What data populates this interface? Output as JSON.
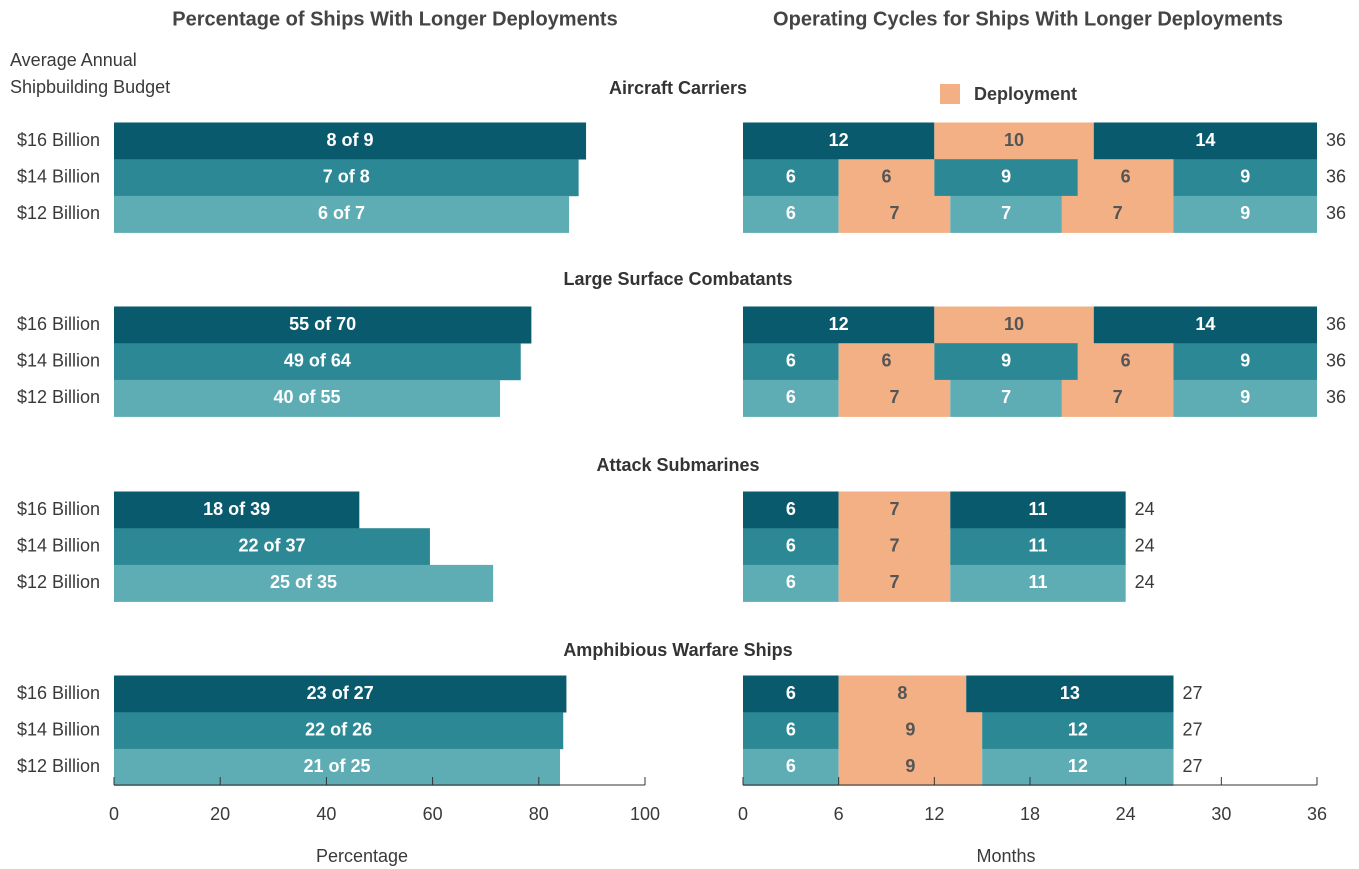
{
  "chart_data": [
    {
      "type": "bar",
      "title": "Percentage of Ships With Longer Deployments",
      "ylabel": [
        "Average Annual",
        "Shipbuilding Budget"
      ],
      "xlabel": "Percentage",
      "xlim": [
        0,
        100
      ],
      "xticks": [
        0,
        20,
        40,
        60,
        80,
        100
      ],
      "colors": [
        "#0a5a6e",
        "#2d8895",
        "#5eacb4"
      ],
      "groups": [
        {
          "name": "Aircraft Carriers",
          "categories": [
            "$16 Billion",
            "$14 Billion",
            "$12 Billion"
          ],
          "values": [
            88.9,
            87.5,
            85.7
          ],
          "value_labels": [
            "8 of 9",
            "7 of 8",
            "6 of 7"
          ]
        },
        {
          "name": "Large Surface Combatants",
          "categories": [
            "$16 Billion",
            "$14 Billion",
            "$12 Billion"
          ],
          "values": [
            78.6,
            76.6,
            72.7
          ],
          "value_labels": [
            "55 of 70",
            "49 of 64",
            "40 of 55"
          ]
        },
        {
          "name": "Attack Submarines",
          "categories": [
            "$16 Billion",
            "$14 Billion",
            "$12 Billion"
          ],
          "values": [
            46.2,
            59.5,
            71.4
          ],
          "value_labels": [
            "18 of 39",
            "22 of 37",
            "25 of 35"
          ]
        },
        {
          "name": "Amphibious Warfare Ships",
          "categories": [
            "$16 Billion",
            "$14 Billion",
            "$12 Billion"
          ],
          "values": [
            85.2,
            84.6,
            84.0
          ],
          "value_labels": [
            "23 of 27",
            "22 of 26",
            "21 of 25"
          ]
        }
      ]
    },
    {
      "type": "stacked_bar",
      "title": "Operating Cycles for Ships With Longer Deployments",
      "xlabel": "Months",
      "legend": "Deployment",
      "deployment_color": "#f3b084",
      "xlim": [
        0,
        36
      ],
      "xticks": [
        0,
        6,
        12,
        18,
        24,
        30,
        36
      ],
      "colors": [
        "#0a5a6e",
        "#2d8895",
        "#5eacb4"
      ],
      "groups": [
        {
          "rows": [
            {
              "segments": [
                12,
                10,
                14
              ],
              "total": 36
            },
            {
              "segments": [
                6,
                6,
                9,
                6,
                9
              ],
              "total": 36
            },
            {
              "segments": [
                6,
                7,
                7,
                7,
                9
              ],
              "total": 36
            }
          ]
        },
        {
          "rows": [
            {
              "segments": [
                12,
                10,
                14
              ],
              "total": 36
            },
            {
              "segments": [
                6,
                6,
                9,
                6,
                9
              ],
              "total": 36
            },
            {
              "segments": [
                6,
                7,
                7,
                7,
                9
              ],
              "total": 36
            }
          ]
        },
        {
          "rows": [
            {
              "segments": [
                6,
                7,
                11
              ],
              "total": 24
            },
            {
              "segments": [
                6,
                7,
                11
              ],
              "total": 24
            },
            {
              "segments": [
                6,
                7,
                11
              ],
              "total": 24
            }
          ]
        },
        {
          "rows": [
            {
              "segments": [
                6,
                8,
                13
              ],
              "total": 27
            },
            {
              "segments": [
                6,
                9,
                12
              ],
              "total": 27
            },
            {
              "segments": [
                6,
                9,
                12
              ],
              "total": 27
            }
          ]
        }
      ]
    }
  ]
}
